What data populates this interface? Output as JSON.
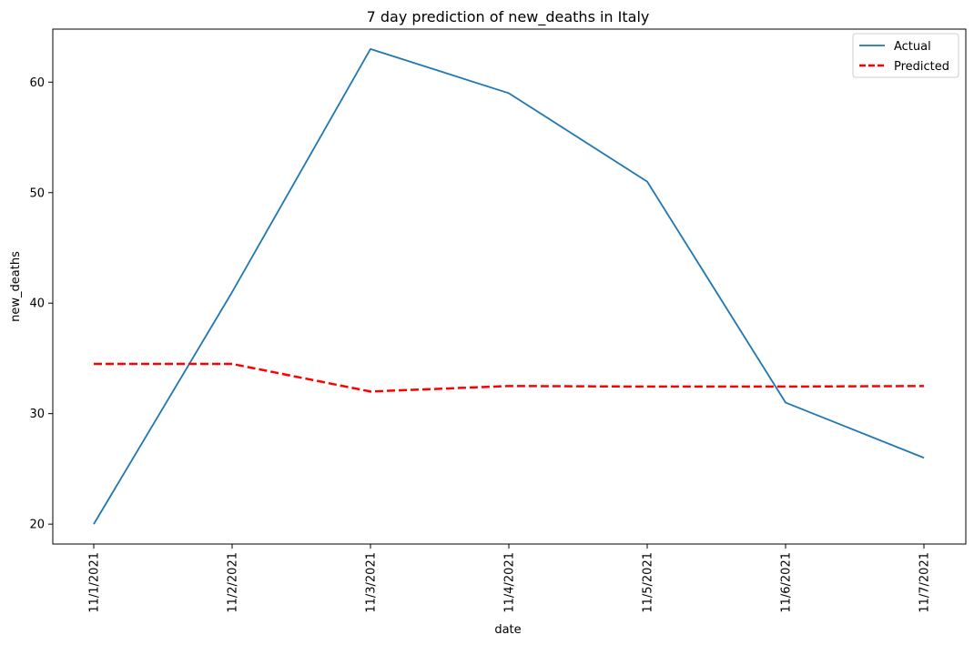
{
  "chart_data": {
    "type": "line",
    "title": "7 day prediction of new_deaths in Italy",
    "xlabel": "date",
    "ylabel": "new_deaths",
    "categories": [
      "11/1/2021",
      "11/2/2021",
      "11/3/2021",
      "11/4/2021",
      "11/5/2021",
      "11/6/2021",
      "11/7/2021"
    ],
    "ylim": [
      18.2,
      64.8
    ],
    "yticks": [
      20,
      30,
      40,
      50,
      60
    ],
    "grid": false,
    "legend_position": "top-right",
    "series": [
      {
        "name": "Actual",
        "values": [
          20,
          41,
          63,
          59,
          51,
          31,
          26
        ],
        "color": "#1f77b4",
        "style": "solid"
      },
      {
        "name": "Predicted",
        "values": [
          34.5,
          34.5,
          32.0,
          32.5,
          32.45,
          32.45,
          32.5
        ],
        "color": "#ff0000",
        "style": "dashed"
      }
    ]
  }
}
